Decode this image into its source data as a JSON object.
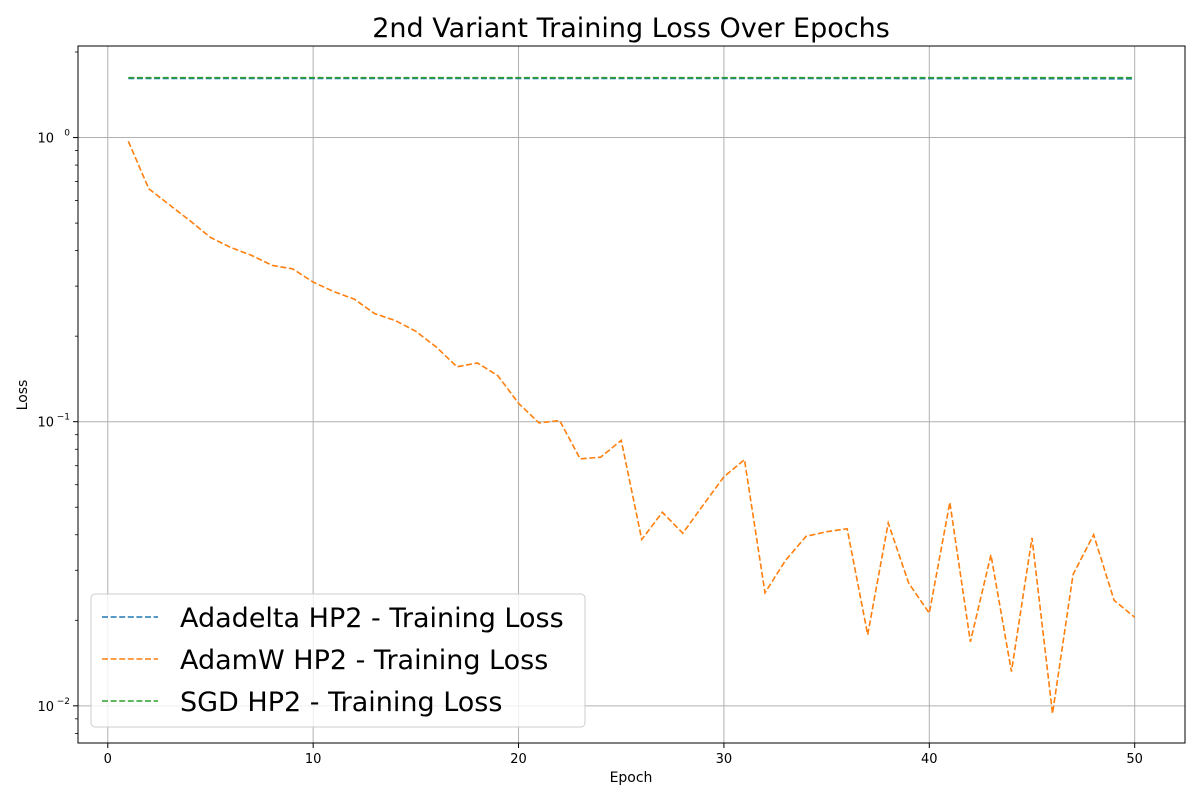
{
  "chart_data": {
    "type": "line",
    "title": "2nd Variant Training Loss Over Epochs",
    "xlabel": "Epoch",
    "ylabel": "Loss",
    "xlim": [
      -1.45,
      52.45
    ],
    "ylim": [
      0.0074,
      2.1
    ],
    "yscale": "log",
    "grid": true,
    "legend_position": "lower-left",
    "x_ticks": [
      0,
      10,
      20,
      30,
      40,
      50
    ],
    "y_ticks": [
      {
        "value": 0.01,
        "base": "10",
        "exp": "−2"
      },
      {
        "value": 0.1,
        "base": "10",
        "exp": "−1"
      },
      {
        "value": 1,
        "base": "10",
        "exp": "0"
      }
    ],
    "x": [
      1,
      2,
      3,
      4,
      5,
      6,
      7,
      8,
      9,
      10,
      11,
      12,
      13,
      14,
      15,
      16,
      17,
      18,
      19,
      20,
      21,
      22,
      23,
      24,
      25,
      26,
      27,
      28,
      29,
      30,
      31,
      32,
      33,
      34,
      35,
      36,
      37,
      38,
      39,
      40,
      41,
      42,
      43,
      44,
      45,
      46,
      47,
      48,
      49,
      50
    ],
    "series": [
      {
        "name": "Adadelta HP2 - Training Loss",
        "color": "#1f77b4",
        "values": [
          1.615,
          1.615,
          1.615,
          1.615,
          1.615,
          1.615,
          1.615,
          1.615,
          1.615,
          1.615,
          1.615,
          1.615,
          1.615,
          1.615,
          1.615,
          1.615,
          1.615,
          1.615,
          1.615,
          1.615,
          1.615,
          1.615,
          1.615,
          1.615,
          1.615,
          1.615,
          1.615,
          1.615,
          1.615,
          1.615,
          1.615,
          1.614,
          1.614,
          1.614,
          1.614,
          1.614,
          1.614,
          1.614,
          1.613,
          1.613,
          1.613,
          1.613,
          1.612,
          1.612,
          1.612,
          1.611,
          1.611,
          1.611,
          1.61,
          1.61
        ]
      },
      {
        "name": "AdamW HP2 - Training Loss",
        "color": "#ff7f0e",
        "values": [
          0.97,
          0.66,
          0.58,
          0.51,
          0.445,
          0.41,
          0.385,
          0.355,
          0.345,
          0.31,
          0.287,
          0.27,
          0.24,
          0.227,
          0.208,
          0.183,
          0.156,
          0.161,
          0.145,
          0.116,
          0.099,
          0.101,
          0.074,
          0.075,
          0.086,
          0.0385,
          0.048,
          0.0405,
          0.051,
          0.064,
          0.0735,
          0.025,
          0.0325,
          0.0395,
          0.041,
          0.042,
          0.0178,
          0.044,
          0.027,
          0.0212,
          0.052,
          0.0168,
          0.034,
          0.0132,
          0.039,
          0.0094,
          0.029,
          0.04,
          0.0235,
          0.0205
        ]
      },
      {
        "name": "SGD HP2 - Training Loss",
        "color": "#2ca02c",
        "values": [
          1.625,
          1.625,
          1.625,
          1.625,
          1.625,
          1.625,
          1.625,
          1.625,
          1.625,
          1.625,
          1.625,
          1.625,
          1.625,
          1.625,
          1.625,
          1.625,
          1.625,
          1.625,
          1.625,
          1.625,
          1.625,
          1.625,
          1.625,
          1.625,
          1.625,
          1.625,
          1.625,
          1.625,
          1.625,
          1.625,
          1.625,
          1.625,
          1.625,
          1.625,
          1.625,
          1.625,
          1.625,
          1.625,
          1.625,
          1.625,
          1.625,
          1.625,
          1.624,
          1.624,
          1.624,
          1.624,
          1.624,
          1.624,
          1.624,
          1.624
        ]
      }
    ]
  }
}
